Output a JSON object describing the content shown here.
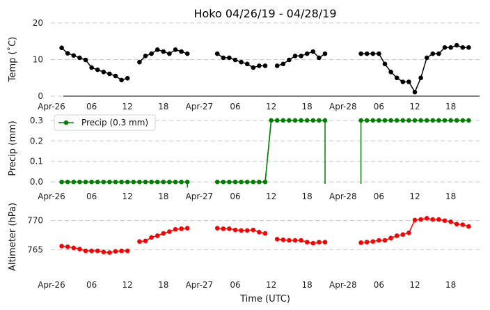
{
  "chart_data": [
    {
      "type": "line",
      "title": "Hoko 04/26/19 - 04/28/19",
      "ylabel": "Temp ($^\\circ$C)",
      "ylabel_display": "Temp (˚C)",
      "ylim": [
        0,
        20
      ],
      "yticks": [
        0,
        10,
        20
      ],
      "color": "#000000",
      "x_ticks": [
        "Apr-26",
        "06",
        "12",
        "18",
        "Apr-27",
        "06",
        "12",
        "18",
        "Apr-28",
        "06",
        "12",
        "18"
      ],
      "series": [
        {
          "values": [
            [
              1,
              13.2
            ],
            [
              2,
              11.7
            ],
            [
              3,
              11.1
            ],
            [
              4,
              10.5
            ],
            [
              5,
              9.9
            ],
            [
              6,
              7.8
            ],
            [
              7,
              7.2
            ],
            [
              8,
              6.6
            ],
            [
              9,
              6.1
            ],
            [
              10,
              5.5
            ],
            [
              11,
              4.4
            ],
            [
              12,
              4.9
            ],
            [
              14,
              9.3
            ],
            [
              15,
              11.0
            ],
            [
              16,
              11.6
            ],
            [
              17,
              12.7
            ],
            [
              18,
              12.2
            ],
            [
              19,
              11.6
            ],
            [
              20,
              12.7
            ],
            [
              21,
              12.2
            ],
            [
              22,
              11.6
            ],
            [
              27,
              11.6
            ],
            [
              28,
              10.5
            ],
            [
              29,
              10.5
            ],
            [
              30,
              9.9
            ],
            [
              31,
              9.3
            ],
            [
              32,
              8.8
            ],
            [
              33,
              7.8
            ],
            [
              34,
              8.3
            ],
            [
              35,
              8.3
            ],
            [
              37,
              8.3
            ],
            [
              38,
              8.8
            ],
            [
              39,
              9.9
            ],
            [
              40,
              11.0
            ],
            [
              41,
              11.0
            ],
            [
              42,
              11.6
            ],
            [
              43,
              12.2
            ],
            [
              44,
              10.5
            ],
            [
              45,
              11.6
            ],
            [
              51,
              11.6
            ],
            [
              52,
              11.6
            ],
            [
              53,
              11.6
            ],
            [
              54,
              11.6
            ],
            [
              55,
              8.8
            ],
            [
              56,
              6.6
            ],
            [
              57,
              5.0
            ],
            [
              58,
              3.9
            ],
            [
              59,
              3.9
            ],
            [
              60,
              1.1
            ],
            [
              61,
              5.0
            ],
            [
              62,
              10.5
            ],
            [
              63,
              11.6
            ],
            [
              64,
              11.6
            ],
            [
              65,
              13.3
            ],
            [
              66,
              13.3
            ],
            [
              67,
              13.9
            ],
            [
              68,
              13.3
            ],
            [
              69,
              13.3
            ]
          ]
        }
      ]
    },
    {
      "type": "line",
      "ylabel": "Precip (mm)",
      "ylim": [
        -0.03,
        0.33
      ],
      "yticks": [
        "0.0",
        "0.1",
        "0.2",
        "0.3"
      ],
      "color": "#008000",
      "x_ticks": [
        "Apr-26",
        "06",
        "12",
        "18",
        "Apr-27",
        "06",
        "12",
        "18",
        "Apr-28",
        "06",
        "12",
        "18"
      ],
      "legend": "Precip (0.3 mm)",
      "series": [
        {
          "values": [
            [
              1,
              0
            ],
            [
              2,
              0
            ],
            [
              3,
              0
            ],
            [
              4,
              0
            ],
            [
              5,
              0
            ],
            [
              6,
              0
            ],
            [
              7,
              0
            ],
            [
              8,
              0
            ],
            [
              9,
              0
            ],
            [
              10,
              0
            ],
            [
              11,
              0
            ],
            [
              12,
              0
            ],
            [
              13,
              0
            ],
            [
              14,
              0
            ],
            [
              15,
              0
            ],
            [
              16,
              0
            ],
            [
              17,
              0
            ],
            [
              18,
              0
            ],
            [
              19,
              0
            ],
            [
              20,
              0
            ],
            [
              21,
              0
            ],
            [
              22,
              0
            ],
            [
              27,
              0
            ],
            [
              28,
              0
            ],
            [
              29,
              0
            ],
            [
              30,
              0
            ],
            [
              31,
              0
            ],
            [
              32,
              0
            ],
            [
              33,
              0
            ],
            [
              34,
              0
            ],
            [
              35,
              0
            ],
            [
              36,
              0.3
            ],
            [
              37,
              0.3
            ],
            [
              38,
              0.3
            ],
            [
              39,
              0.3
            ],
            [
              40,
              0.3
            ],
            [
              41,
              0.3
            ],
            [
              42,
              0.3
            ],
            [
              43,
              0.3
            ],
            [
              44,
              0.3
            ],
            [
              45,
              0.3
            ],
            [
              51,
              0.3
            ],
            [
              52,
              0.3
            ],
            [
              53,
              0.3
            ],
            [
              54,
              0.3
            ],
            [
              55,
              0.3
            ],
            [
              56,
              0.3
            ],
            [
              57,
              0.3
            ],
            [
              58,
              0.3
            ],
            [
              59,
              0.3
            ],
            [
              60,
              0.3
            ],
            [
              61,
              0.3
            ],
            [
              62,
              0.3
            ],
            [
              63,
              0.3
            ],
            [
              64,
              0.3
            ],
            [
              65,
              0.3
            ],
            [
              66,
              0.3
            ],
            [
              67,
              0.3
            ],
            [
              68,
              0.3
            ],
            [
              69,
              0.3
            ]
          ]
        }
      ]
    },
    {
      "type": "line",
      "ylabel": "Altimeter (hPa)",
      "xlabel": "Time (UTC)",
      "ylim": [
        760,
        772
      ],
      "yticks": [
        765,
        770
      ],
      "color": "#ff0000",
      "x_ticks": [
        "Apr-26",
        "06",
        "12",
        "18",
        "Apr-27",
        "06",
        "12",
        "18",
        "Apr-28",
        "06",
        "12",
        "18"
      ],
      "series": [
        {
          "values": [
            [
              1,
              765.6
            ],
            [
              2,
              765.5
            ],
            [
              3,
              765.3
            ],
            [
              4,
              765.1
            ],
            [
              5,
              764.8
            ],
            [
              6,
              764.8
            ],
            [
              7,
              764.8
            ],
            [
              8,
              764.6
            ],
            [
              9,
              764.5
            ],
            [
              10,
              764.7
            ],
            [
              11,
              764.8
            ],
            [
              12,
              764.8
            ],
            [
              14,
              766.4
            ],
            [
              15,
              766.5
            ],
            [
              16,
              767.1
            ],
            [
              17,
              767.4
            ],
            [
              18,
              767.8
            ],
            [
              19,
              768.1
            ],
            [
              20,
              768.5
            ],
            [
              21,
              768.6
            ],
            [
              22,
              768.7
            ],
            [
              27,
              768.7
            ],
            [
              28,
              768.6
            ],
            [
              29,
              768.6
            ],
            [
              30,
              768.4
            ],
            [
              31,
              768.3
            ],
            [
              32,
              768.3
            ],
            [
              33,
              768.4
            ],
            [
              34,
              768.0
            ],
            [
              35,
              767.8
            ],
            [
              37,
              766.8
            ],
            [
              38,
              766.7
            ],
            [
              39,
              766.6
            ],
            [
              40,
              766.6
            ],
            [
              41,
              766.6
            ],
            [
              42,
              766.3
            ],
            [
              43,
              766.1
            ],
            [
              44,
              766.3
            ],
            [
              45,
              766.3
            ],
            [
              51,
              766.2
            ],
            [
              52,
              766.3
            ],
            [
              53,
              766.4
            ],
            [
              54,
              766.6
            ],
            [
              55,
              766.6
            ],
            [
              56,
              767.0
            ],
            [
              57,
              767.4
            ],
            [
              58,
              767.6
            ],
            [
              59,
              767.9
            ],
            [
              60,
              770.1
            ],
            [
              61,
              770.2
            ],
            [
              62,
              770.4
            ],
            [
              63,
              770.2
            ],
            [
              64,
              770.2
            ],
            [
              65,
              770.0
            ],
            [
              66,
              769.8
            ],
            [
              67,
              769.4
            ],
            [
              68,
              769.3
            ],
            [
              69,
              769.0
            ]
          ]
        }
      ]
    }
  ]
}
